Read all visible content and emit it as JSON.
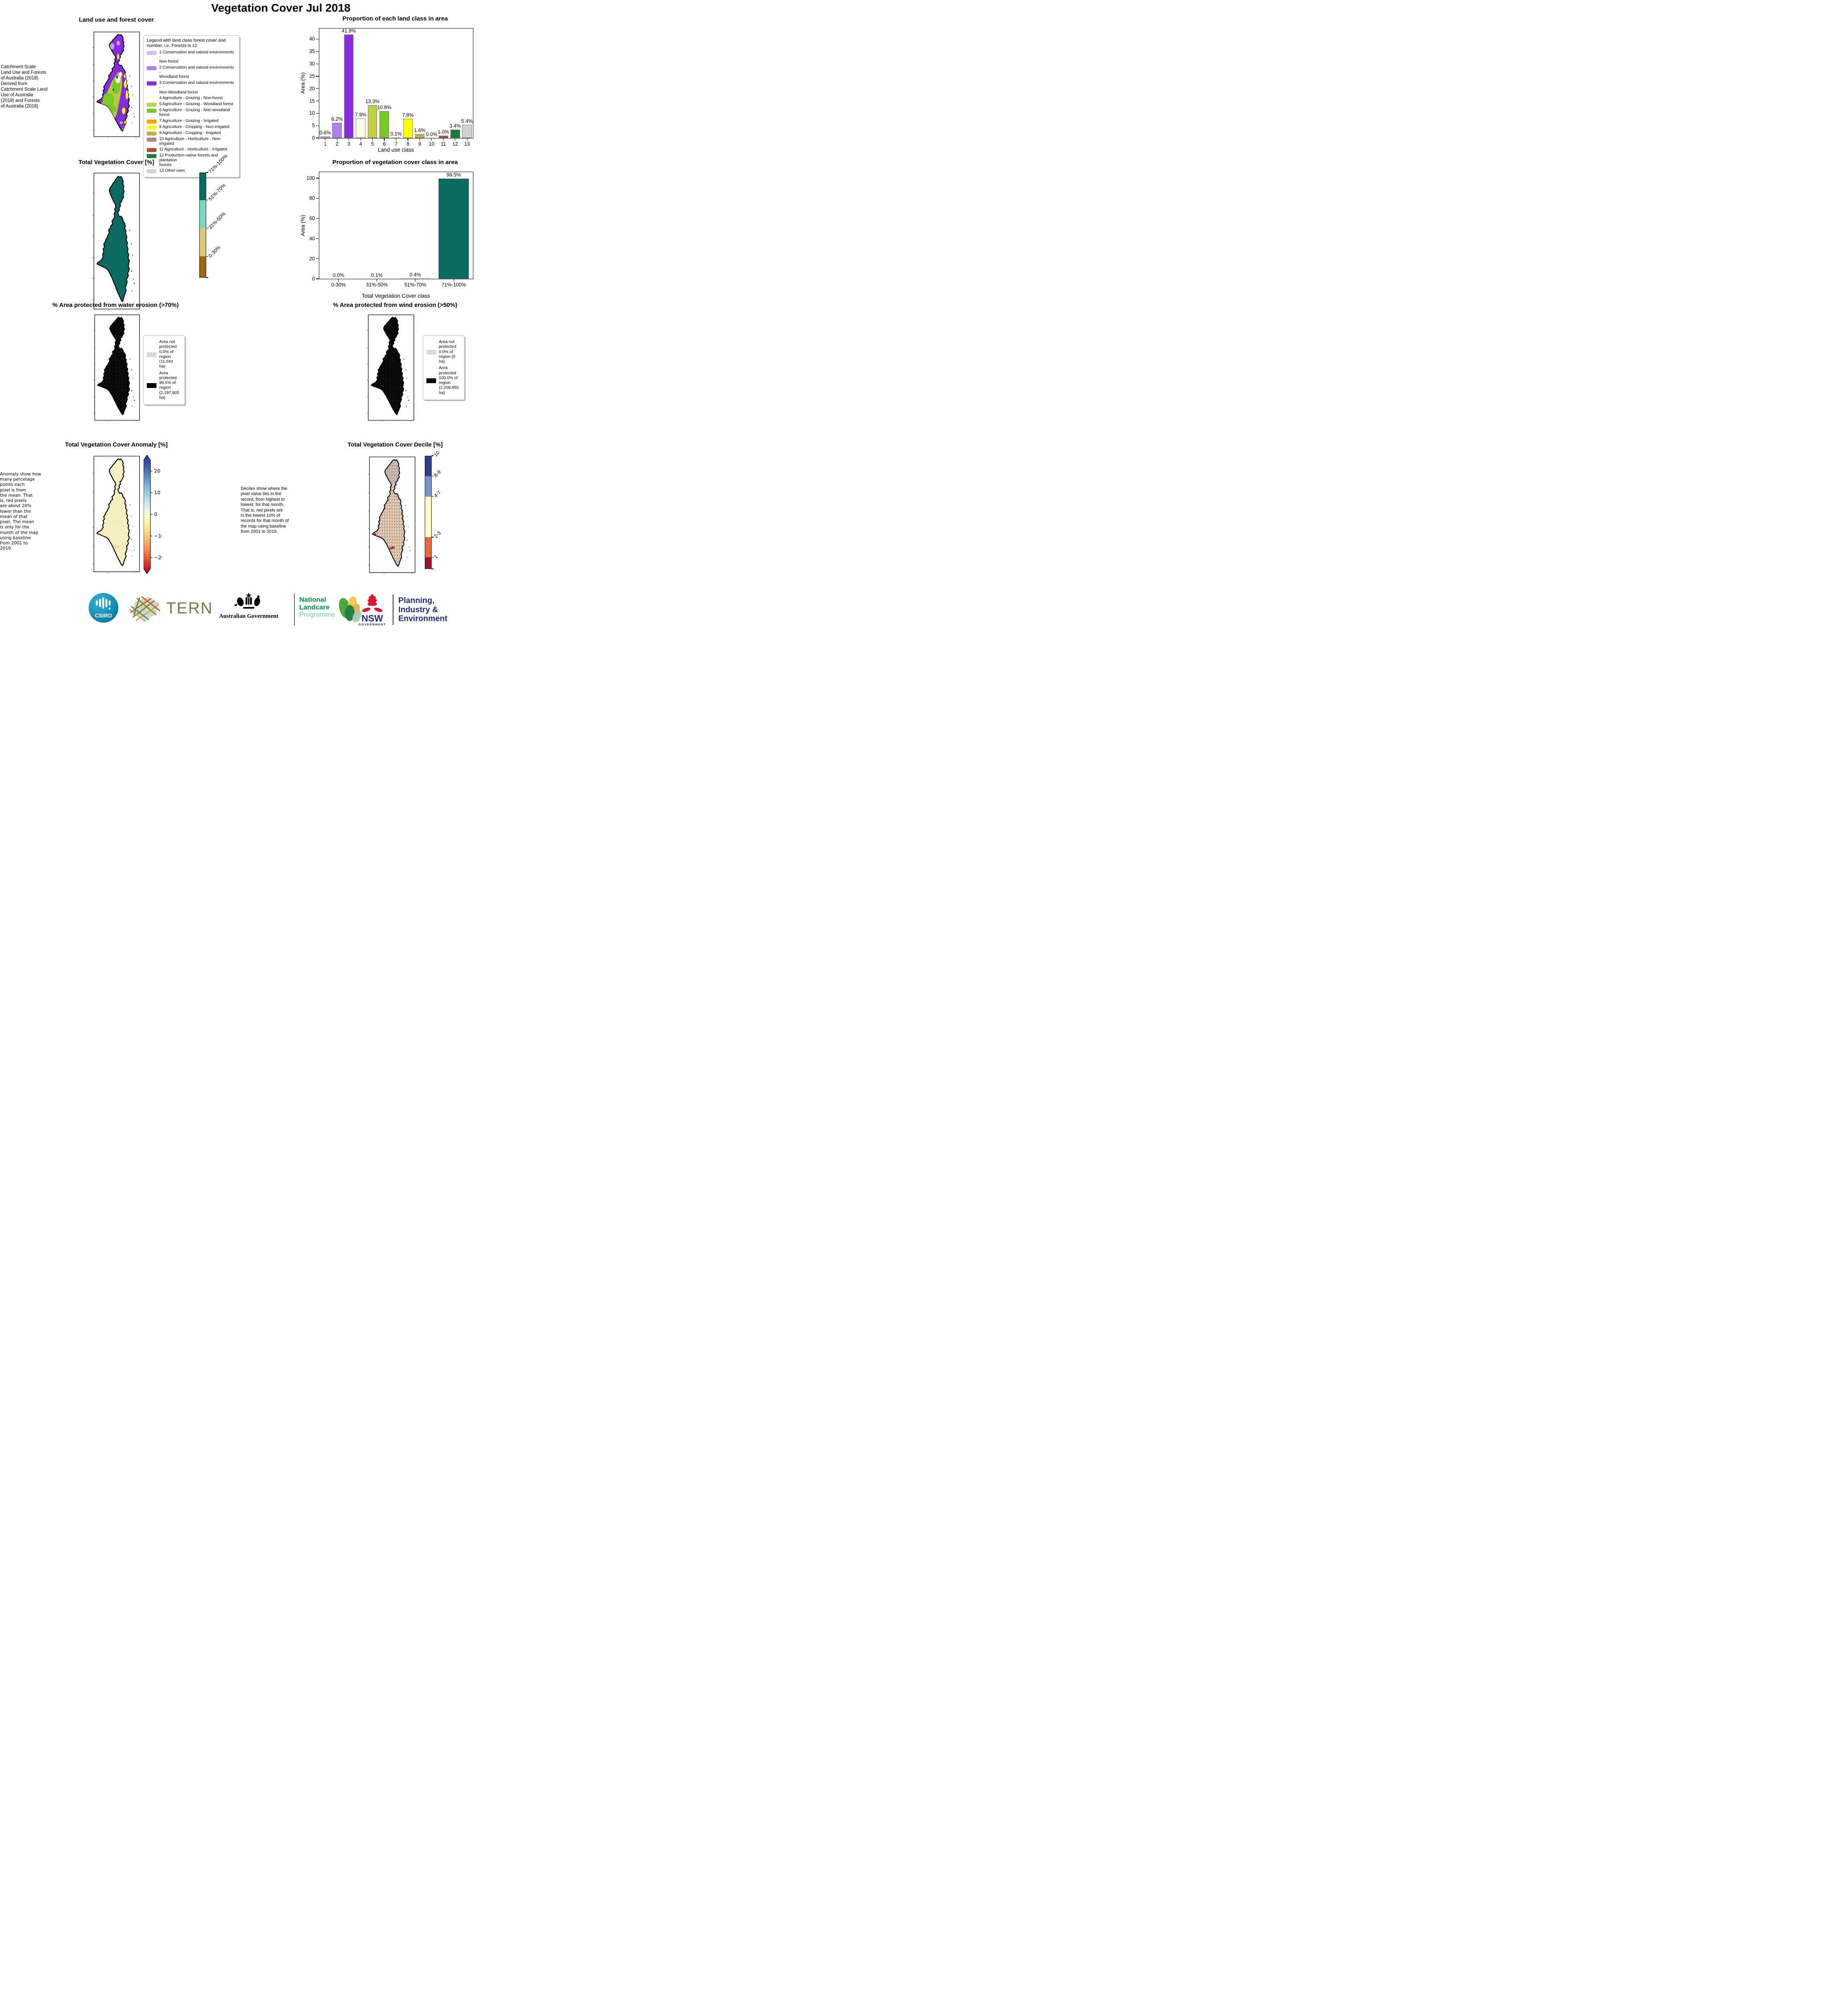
{
  "page": {
    "title": "Vegetation Cover Jul 2018"
  },
  "chart_data": [
    {
      "id": "land-class-proportion",
      "type": "bar",
      "title": "Proportion of each land class in area",
      "xlabel": "Land use class",
      "ylabel": "Area (%)",
      "categories": [
        "1",
        "2",
        "3",
        "4",
        "5",
        "6",
        "7",
        "8",
        "9",
        "10",
        "11",
        "12",
        "13"
      ],
      "values": [
        0.6,
        6.2,
        41.9,
        7.9,
        13.3,
        10.8,
        0.1,
        7.8,
        1.6,
        0.0,
        1.0,
        3.4,
        5.4
      ],
      "labels": [
        "0.6%",
        "6.2%",
        "41.9%",
        "7.9%",
        "13.3%",
        "10.8%",
        "0.1%",
        "7.8%",
        "1.6%",
        "0.0%",
        "1.0%",
        "3.4%",
        "5.4%"
      ],
      "colors": [
        "#d9b8f0",
        "#b07ff0",
        "#8a2be2",
        "#fffde4",
        "#c2ce45",
        "#79c821",
        "#ffa500",
        "#ffff00",
        "#bfae55",
        "#ab887d",
        "#a3552b",
        "#1f7a3a",
        "#d3d3d3"
      ],
      "ylim": [
        0,
        44.3
      ],
      "yticks": [
        0,
        5,
        10,
        15,
        20,
        25,
        30,
        35,
        40
      ],
      "grid": false,
      "legend": "none"
    },
    {
      "id": "veg-cover-class-proportion",
      "type": "bar",
      "title": "Proportion of vegetation cover class in area",
      "xlabel": "Total Vegetation Cover class",
      "ylabel": "Area (%)",
      "categories": [
        "0-30%",
        "31%-50%",
        "51%-70%",
        "71%-100%"
      ],
      "values": [
        0.0,
        0.1,
        0.4,
        99.5
      ],
      "labels": [
        "0.0%",
        "0.1%",
        "0.4%",
        "99.5%"
      ],
      "colors": [
        "#9f6610",
        "#e3c47e",
        "#80d5c0",
        "#0b6b63"
      ],
      "ylim": [
        0,
        106
      ],
      "yticks": [
        0,
        20,
        40,
        60,
        80,
        100
      ],
      "grid": false,
      "legend": "none"
    }
  ],
  "land_use": {
    "title": "Land use and forest cover",
    "note": " Catchment Scale\nLand Use and Forests\nof Australia (2018)\nDerived from\nCatchment Scale Land\nUse of Australia\n(2018) and Forests\nof Australia (2018)",
    "legend_title": "Legend with land class forest cover and\nnumber, i.e. Forests is 12",
    "classes": [
      {
        "label": "1 Conservation and natural environments -\nNon-forest",
        "color": "#d9b8f0"
      },
      {
        "label": "2 Conservation and natural environments -\nWoodland forest",
        "color": "#b07ff0"
      },
      {
        "label": "3 Conservation and natural environments -\nNon-Woodland forest",
        "color": "#8a2be2"
      },
      {
        "label": "4 Agriculture - Grazing - Non-forest",
        "color": "#fffde4"
      },
      {
        "label": "5 Agriculture - Grazing - Woodland forest",
        "color": "#c2ce45"
      },
      {
        "label": "6 Agriculture - Grazing - Non-woodland forest",
        "color": "#79c821"
      },
      {
        "label": "7 Agriculture - Grazing - Irrigated",
        "color": "#ffa500"
      },
      {
        "label": "8 Agriculture - Cropping - Non-irrigated",
        "color": "#ffff00"
      },
      {
        "label": "9 Agriculture - Cropping - Irrigated",
        "color": "#bfae55"
      },
      {
        "label": "10 Agriculture - Horticulture - Non-irrigated",
        "color": "#ab887d"
      },
      {
        "label": "11 Agriculture - Horticulture - Irrigated",
        "color": "#a3552b"
      },
      {
        "label": "12 Production native forests and plantation\nforests",
        "color": "#1f7a3a"
      },
      {
        "label": "13 Other uses",
        "color": "#d3d3d3"
      }
    ]
  },
  "veg_cover": {
    "title": "Total Vegetation Cover [%]",
    "colorbar": [
      {
        "label": "71%-100%",
        "color": "#0b6b63",
        "frac": 0.26
      },
      {
        "label": "51%-70%",
        "color": "#80d5c0",
        "frac": 0.27
      },
      {
        "label": "31%-50%",
        "color": "#e3c47e",
        "frac": 0.27
      },
      {
        "label": "0-30%",
        "color": "#9f6610",
        "frac": 0.2
      }
    ]
  },
  "water_erosion": {
    "title": "% Area protected from water erosion (>70%)",
    "legend": [
      {
        "color": "#d9d9d9",
        "label": "Area not\nprotected\n0.5% of\nregion\n(11,044\nha)"
      },
      {
        "color": "#000000",
        "label": "Area\nprotected\n99.5% of\nregion\n(2,197,805\nha)"
      }
    ]
  },
  "wind_erosion": {
    "title": "% Area protected from wind erosion (>50%)",
    "legend": [
      {
        "color": "#d9d9d9",
        "label": "Area not\nprotected\n0.0% of\nregion (0\nha)"
      },
      {
        "color": "#000000",
        "label": "Area\nprotected\n100.0% of\nregion\n(2,208,850\nha)"
      }
    ]
  },
  "anomaly": {
    "title": "Total Vegetation Cover Anomaly [%]",
    "note": "Anomaly show how\nmany percetage\npoints each\npixel is from\nthe mean. That\nis, red pixels\nare about 20%\nlower than the\nmean of that\npixel. The mean\nis only for the\nmonth of the map\nusing baseline\nfrom 2001 to\n2019.",
    "ticks": [
      "20",
      "10",
      "0",
      "−10",
      "−20"
    ]
  },
  "decile": {
    "title": "Total Vegetation Cover Decile [%]",
    "note": "Deciles show where the\npixel value lies in the\nrecord, from highest to\nlowest, for that month.\nThat is, red pixels are\nin the lowest 10% of\nrecords for that month of\nthe map using baseline\nfrom 2001 to 2019.",
    "colorbar": [
      {
        "label": "10",
        "color": "#2e3d8c",
        "frac": 0.18
      },
      {
        "label": "8-9",
        "color": "#7b93c8",
        "frac": 0.18
      },
      {
        "label": "4-7",
        "color": "#fdfdc4",
        "frac": 0.36
      },
      {
        "label": "2-3",
        "color": "#e5693d",
        "frac": 0.18
      },
      {
        "label": "1",
        "color": "#a30c2b",
        "frac": 0.1
      }
    ]
  },
  "logos": {
    "csiro": "CSIRO",
    "tern": "TERN",
    "aus_gov": "Australian Government",
    "landcare_line1": "National",
    "landcare_line2": "Landcare",
    "landcare_line3": "Programme",
    "nsw": "NSW",
    "nsw_sub": "GOVERNMENT",
    "dept_line1": "Planning,",
    "dept_line2": "Industry &",
    "dept_line3": "Environment",
    "brand_colors": {
      "csiro_teal": "#0f7fa4",
      "landcare_green": "#00953f",
      "landcare_light_green": "#79c9a4",
      "nsw_red": "#da1a35",
      "nsw_navy": "#1c2e7a",
      "tern_olive": "#6f7b46"
    }
  }
}
